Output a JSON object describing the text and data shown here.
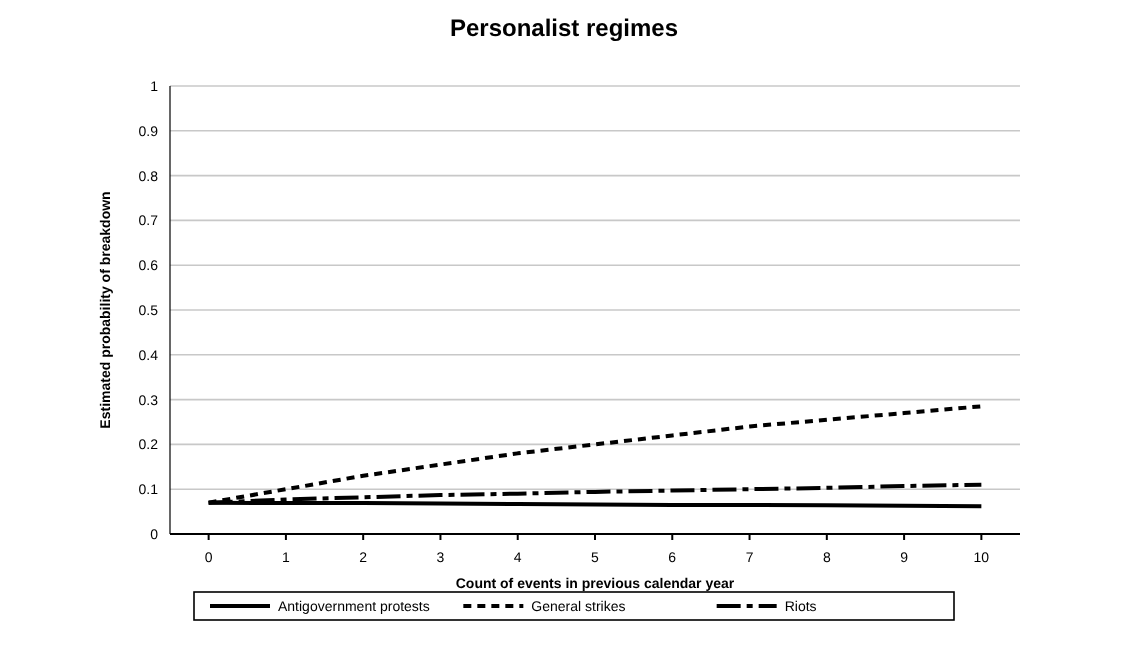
{
  "chart_data": {
    "type": "line",
    "title": "Personalist regimes",
    "xlabel": "Count of events in previous calendar year",
    "ylabel": "Estimated probability of breakdown",
    "x": [
      0,
      1,
      2,
      3,
      4,
      5,
      6,
      7,
      8,
      9,
      10
    ],
    "series": [
      {
        "name": "Antigovernment protests",
        "color": "#000000",
        "line_style": "solid",
        "values": [
          0.07,
          0.069,
          0.069,
          0.068,
          0.067,
          0.066,
          0.065,
          0.065,
          0.064,
          0.063,
          0.062
        ]
      },
      {
        "name": "General strikes",
        "color": "#000000",
        "line_style": "dotted",
        "values": [
          0.07,
          0.1,
          0.13,
          0.155,
          0.18,
          0.2,
          0.22,
          0.24,
          0.255,
          0.27,
          0.285
        ]
      },
      {
        "name": "Riots",
        "color": "#000000",
        "line_style": "dashed",
        "values": [
          0.07,
          0.077,
          0.082,
          0.087,
          0.09,
          0.094,
          0.097,
          0.1,
          0.103,
          0.107,
          0.11
        ]
      }
    ],
    "xlim": [
      -0.5,
      10.5
    ],
    "xticks": [
      0,
      1,
      2,
      3,
      4,
      5,
      6,
      7,
      8,
      9,
      10
    ],
    "ylim": [
      0,
      1
    ],
    "yticks": [
      0,
      0.1,
      0.2,
      0.3,
      0.4,
      0.5,
      0.6,
      0.7,
      0.8,
      0.9,
      1
    ],
    "grid": "y",
    "legend": "bottom",
    "marker": "none"
  }
}
